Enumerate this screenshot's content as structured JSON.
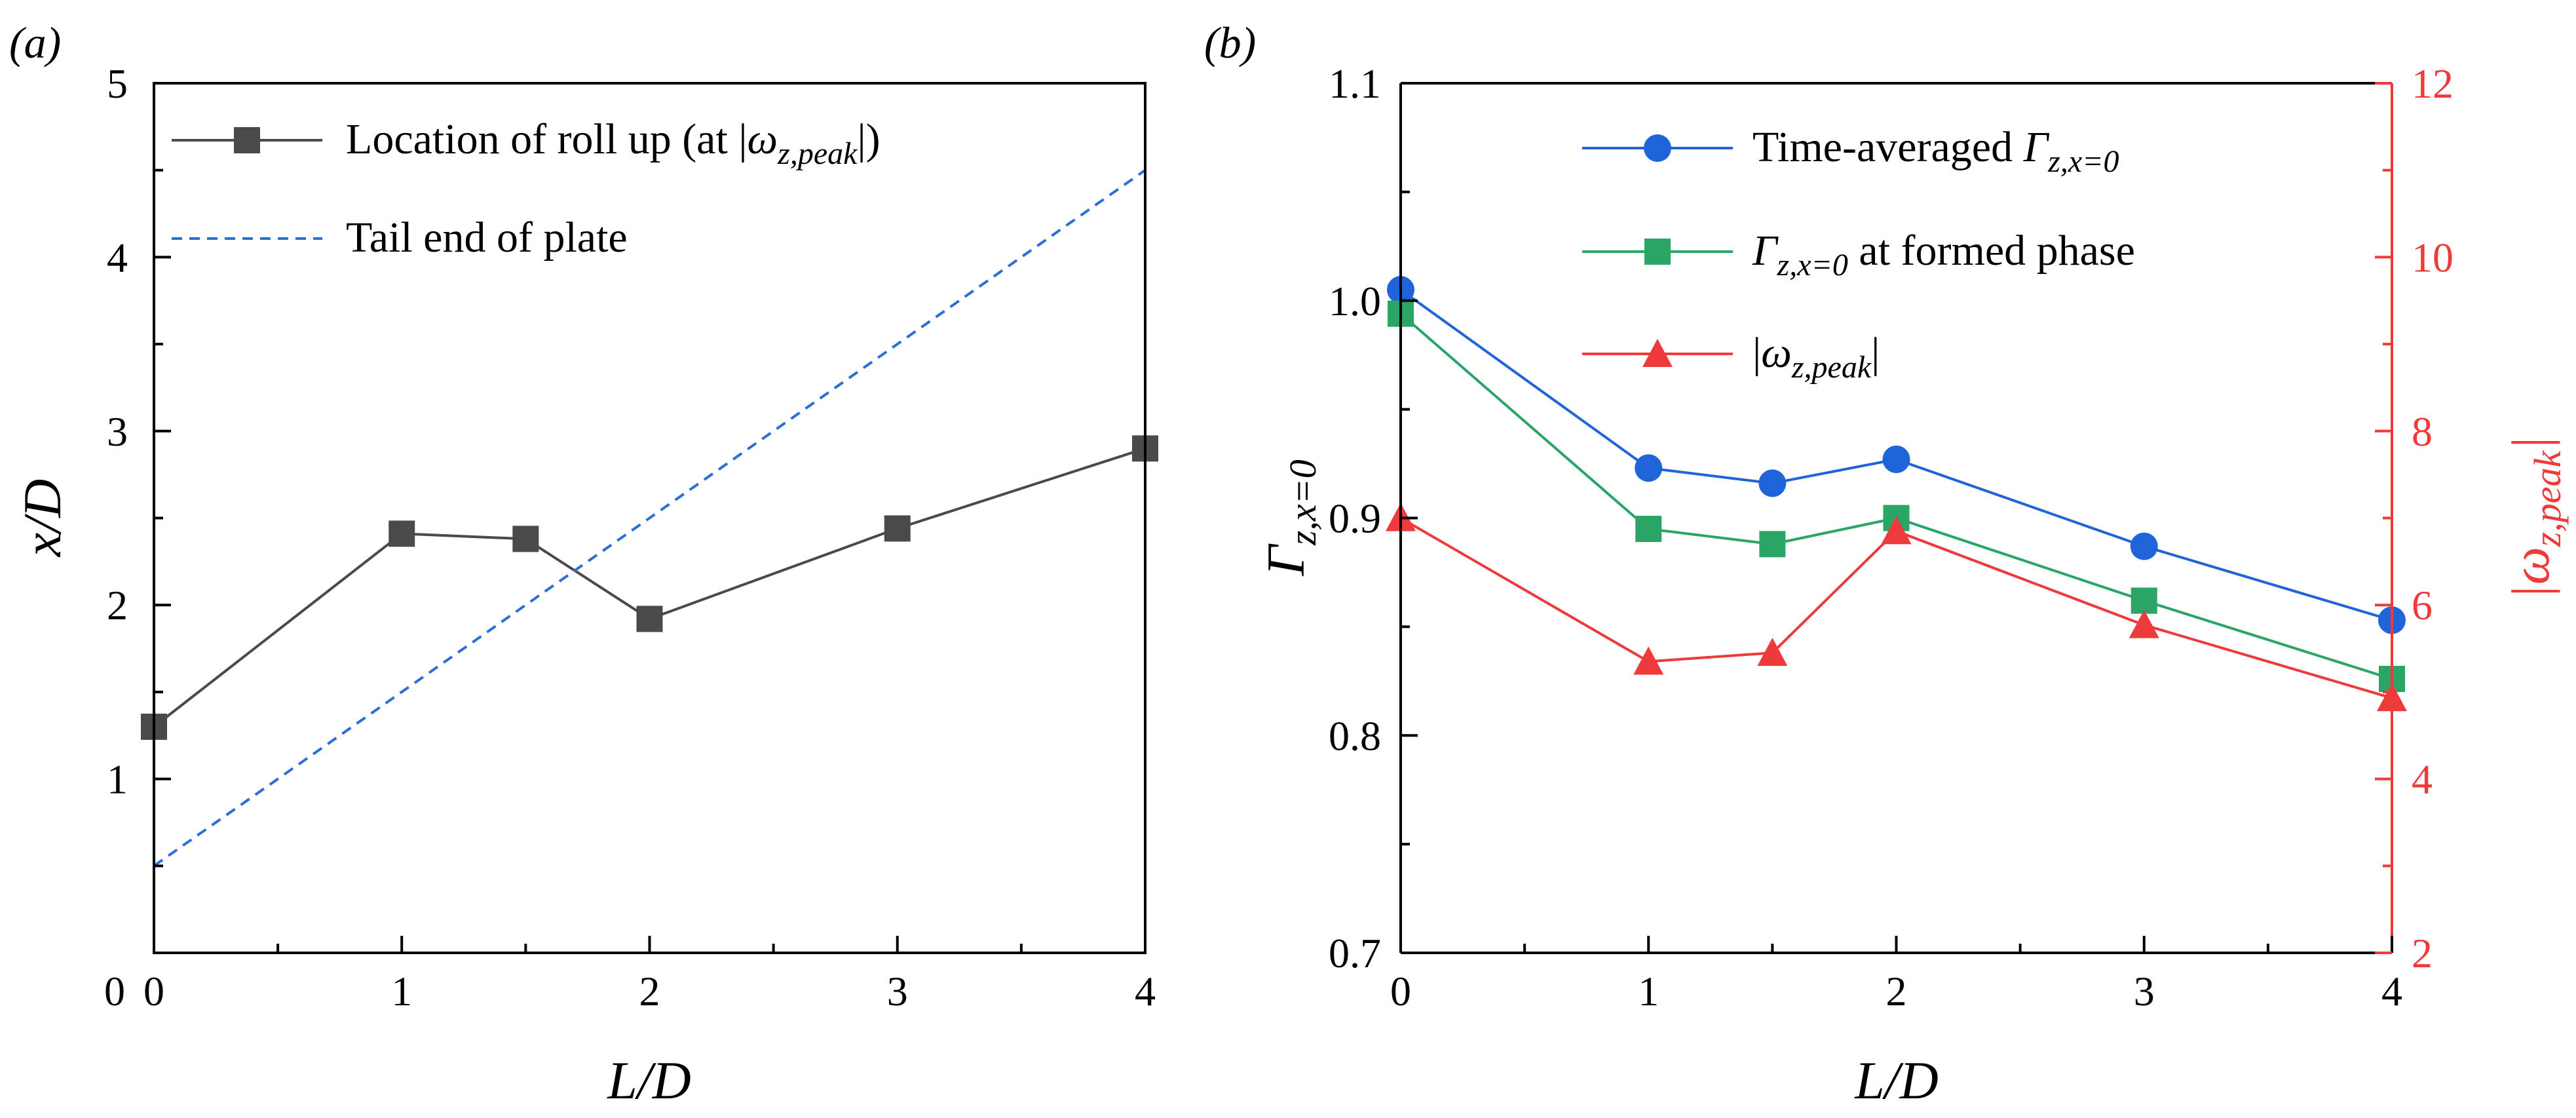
{
  "panels": {
    "a": {
      "label": "(a)"
    },
    "b": {
      "label": "(b)"
    }
  },
  "chart_data": [
    {
      "panel": "a",
      "type": "line",
      "xlabel": "L/D",
      "ylabel": "x/D",
      "xlim": [
        0,
        4
      ],
      "ylim": [
        0,
        5
      ],
      "x_ticks": [
        "0",
        "1",
        "2",
        "3",
        "4"
      ],
      "y_ticks": [
        "1",
        "2",
        "3",
        "4",
        "5"
      ],
      "grid": false,
      "legend_position": "top-left",
      "series": [
        {
          "name": "Location of roll up (at |ω_z,peak|)",
          "legend_main": "Location of roll up (at |",
          "legend_var": "ω",
          "legend_sub": "z,peak",
          "legend_end": "|)",
          "marker": "square",
          "color": "#4a4a4a",
          "x": [
            0.0,
            1.0,
            1.5,
            2.0,
            3.0,
            4.0
          ],
          "y": [
            1.3,
            2.41,
            2.38,
            1.92,
            2.44,
            2.9
          ]
        },
        {
          "name": "Tail end of plate",
          "line_style": "dashed",
          "color": "#2a6fd4",
          "x": [
            0.0,
            4.0
          ],
          "y": [
            0.5,
            4.5
          ]
        }
      ]
    },
    {
      "panel": "b",
      "type": "line",
      "xlabel": "L/D",
      "ylabel_left": "Γz,x=0",
      "ylabel_right": "|ωz,peak|",
      "xlim": [
        0,
        4
      ],
      "ylim_left": [
        0.7,
        1.1
      ],
      "ylim_right": [
        2,
        12
      ],
      "x_ticks": [
        "0",
        "1",
        "2",
        "3",
        "4"
      ],
      "y_ticks_left": [
        "0.7",
        "0.8",
        "0.9",
        "1.0",
        "1.1"
      ],
      "y_ticks_right": [
        "2",
        "4",
        "6",
        "8",
        "10",
        "12"
      ],
      "grid": false,
      "legend_position": "top-right",
      "series": [
        {
          "name": "Time-averaged Γz,x=0",
          "legend_main": "Time-averaged ",
          "axis": "left",
          "marker": "circle",
          "color": "#1f64d8",
          "x": [
            0.0,
            1.0,
            1.5,
            2.0,
            3.0,
            4.0
          ],
          "y": [
            1.005,
            0.923,
            0.916,
            0.927,
            0.887,
            0.853
          ]
        },
        {
          "name": "Γz,x=0 at formed phase",
          "legend_end": " at formed phase",
          "axis": "left",
          "marker": "square",
          "color": "#2aa565",
          "x": [
            0.0,
            1.0,
            1.5,
            2.0,
            3.0,
            4.0
          ],
          "y": [
            0.994,
            0.895,
            0.888,
            0.9,
            0.862,
            0.826
          ]
        },
        {
          "name": "|ωz,peak|",
          "axis": "right",
          "marker": "triangle",
          "color": "#ee3a3a",
          "x": [
            0.0,
            1.0,
            1.5,
            2.0,
            3.0,
            4.0
          ],
          "y": [
            7.0,
            5.35,
            5.45,
            6.85,
            5.77,
            4.93
          ]
        }
      ]
    }
  ]
}
